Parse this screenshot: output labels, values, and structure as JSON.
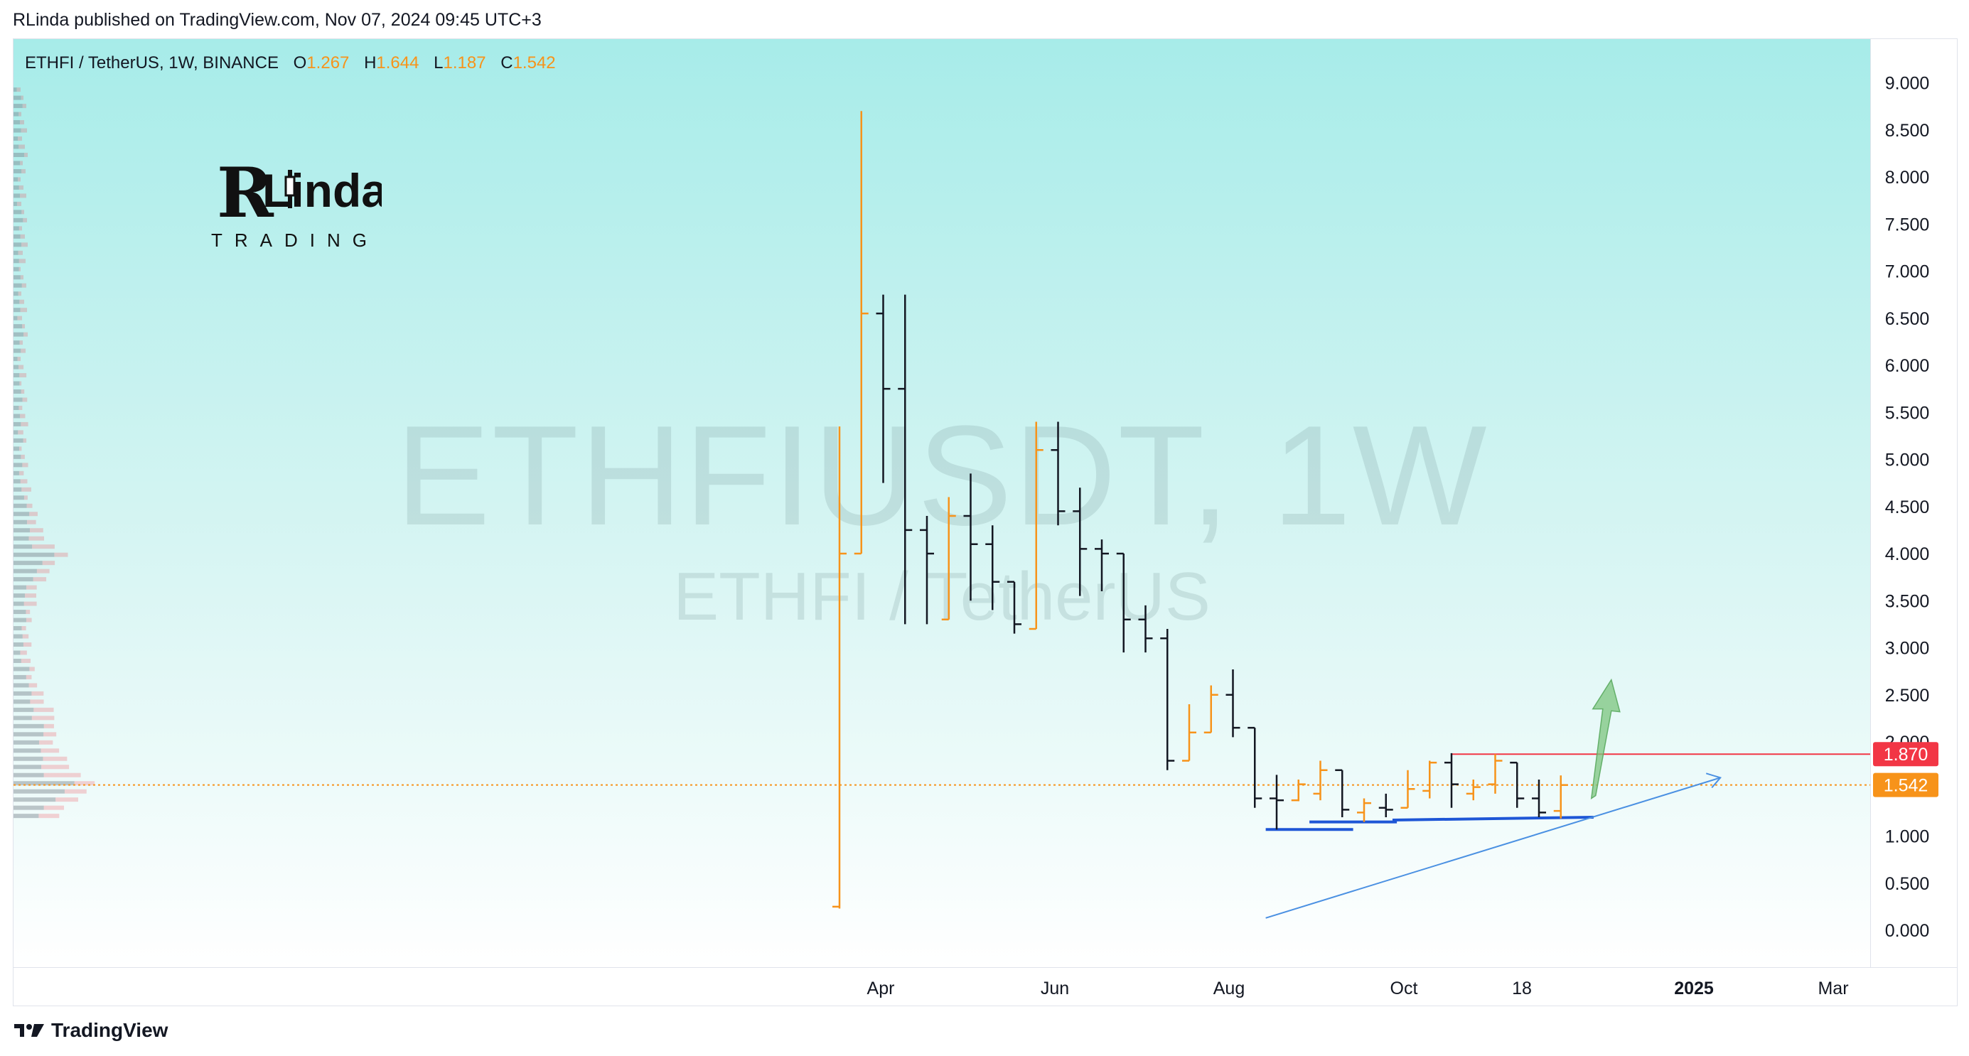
{
  "header": {
    "publisher_line": "RLinda published on TradingView.com, Nov 07, 2024 09:45 UTC+3"
  },
  "legend": {
    "symbol": "ETHFI / TetherUS, 1W, BINANCE",
    "open_label": "O",
    "open": "1.267",
    "high_label": "H",
    "high": "1.644",
    "low_label": "L",
    "low": "1.187",
    "close_label": "C",
    "close": "1.542"
  },
  "watermark": {
    "main": "ETHFIUSDT, 1W",
    "sub": "ETHFI / TetherUS"
  },
  "logo": {
    "brand": "RLinda",
    "sub": "TRADING"
  },
  "footer": {
    "brand": "TradingView",
    "icon": "tradingview-logo-icon"
  },
  "colors": {
    "up_bar": "#f7931a",
    "down_bar": "#131722",
    "resistance_line": "#f23645",
    "current_price_line": "#f7931a",
    "support_lines": "#1e56d6",
    "trend_line": "#4a90e2",
    "arrow": "#7cc47f"
  },
  "chart_data": {
    "type": "ohlc",
    "title": "ETHFI / TetherUS, 1W, BINANCE",
    "y_ticks": [
      "9.000",
      "8.500",
      "8.000",
      "7.500",
      "7.000",
      "6.500",
      "6.000",
      "5.500",
      "5.000",
      "4.500",
      "4.000",
      "3.500",
      "3.000",
      "2.500",
      "2.000",
      "1.000",
      "0.500",
      "0.000"
    ],
    "ylim": [
      -0.3,
      9.8
    ],
    "x_ticks": [
      "Apr",
      "Jun",
      "Aug",
      "Oct",
      "18",
      "2025",
      "Mar"
    ],
    "price_labels": [
      {
        "value": 1.87,
        "text": "1.870",
        "color": "#f23645"
      },
      {
        "value": 1.542,
        "text": "1.542",
        "color": "#f7931a"
      }
    ],
    "bars": [
      {
        "week": 0,
        "o": 0.25,
        "h": 5.35,
        "l": 0.23,
        "c": 4.0
      },
      {
        "week": 1,
        "o": 4.0,
        "h": 8.7,
        "l": 4.0,
        "c": 6.55
      },
      {
        "week": 2,
        "o": 6.55,
        "h": 6.75,
        "l": 4.75,
        "c": 5.75
      },
      {
        "week": 3,
        "o": 5.75,
        "h": 6.75,
        "l": 3.25,
        "c": 4.25
      },
      {
        "week": 4,
        "o": 4.25,
        "h": 4.4,
        "l": 3.25,
        "c": 4.0
      },
      {
        "week": 5,
        "o": 3.3,
        "h": 4.6,
        "l": 3.3,
        "c": 4.4
      },
      {
        "week": 6,
        "o": 4.4,
        "h": 4.85,
        "l": 3.5,
        "c": 4.1
      },
      {
        "week": 7,
        "o": 4.1,
        "h": 4.3,
        "l": 3.4,
        "c": 3.7
      },
      {
        "week": 8,
        "o": 3.7,
        "h": 3.7,
        "l": 3.15,
        "c": 3.25
      },
      {
        "week": 9,
        "o": 3.2,
        "h": 5.4,
        "l": 3.2,
        "c": 5.1
      },
      {
        "week": 10,
        "o": 5.1,
        "h": 5.4,
        "l": 4.3,
        "c": 4.45
      },
      {
        "week": 11,
        "o": 4.45,
        "h": 4.7,
        "l": 3.55,
        "c": 4.05
      },
      {
        "week": 12,
        "o": 4.05,
        "h": 4.15,
        "l": 3.6,
        "c": 4.0
      },
      {
        "week": 13,
        "o": 4.0,
        "h": 4.0,
        "l": 2.95,
        "c": 3.3
      },
      {
        "week": 14,
        "o": 3.3,
        "h": 3.45,
        "l": 2.95,
        "c": 3.1
      },
      {
        "week": 15,
        "o": 3.1,
        "h": 3.2,
        "l": 1.7,
        "c": 1.8
      },
      {
        "week": 16,
        "o": 1.8,
        "h": 2.4,
        "l": 1.8,
        "c": 2.1
      },
      {
        "week": 17,
        "o": 2.1,
        "h": 2.6,
        "l": 2.1,
        "c": 2.5
      },
      {
        "week": 18,
        "o": 2.5,
        "h": 2.77,
        "l": 2.05,
        "c": 2.15
      },
      {
        "week": 19,
        "o": 2.15,
        "h": 2.15,
        "l": 1.3,
        "c": 1.4
      },
      {
        "week": 20,
        "o": 1.4,
        "h": 1.65,
        "l": 1.07,
        "c": 1.38
      },
      {
        "week": 21,
        "o": 1.38,
        "h": 1.6,
        "l": 1.37,
        "c": 1.55
      },
      {
        "week": 22,
        "o": 1.45,
        "h": 1.8,
        "l": 1.38,
        "c": 1.7
      },
      {
        "week": 23,
        "o": 1.7,
        "h": 1.7,
        "l": 1.2,
        "c": 1.28
      },
      {
        "week": 24,
        "o": 1.25,
        "h": 1.4,
        "l": 1.15,
        "c": 1.35
      },
      {
        "week": 25,
        "o": 1.3,
        "h": 1.45,
        "l": 1.2,
        "c": 1.28
      },
      {
        "week": 26,
        "o": 1.3,
        "h": 1.7,
        "l": 1.3,
        "c": 1.5
      },
      {
        "week": 27,
        "o": 1.48,
        "h": 1.8,
        "l": 1.4,
        "c": 1.78
      },
      {
        "week": 28,
        "o": 1.78,
        "h": 1.88,
        "l": 1.3,
        "c": 1.55
      },
      {
        "week": 29,
        "o": 1.45,
        "h": 1.6,
        "l": 1.38,
        "c": 1.52
      },
      {
        "week": 30,
        "o": 1.55,
        "h": 1.87,
        "l": 1.45,
        "c": 1.8
      },
      {
        "week": 31,
        "o": 1.78,
        "h": 1.78,
        "l": 1.3,
        "c": 1.4
      },
      {
        "week": 32,
        "o": 1.4,
        "h": 1.6,
        "l": 1.2,
        "c": 1.25
      },
      {
        "week": 33,
        "o": 1.267,
        "h": 1.644,
        "l": 1.187,
        "c": 1.542
      }
    ],
    "volume_profile_levels": 90
  }
}
